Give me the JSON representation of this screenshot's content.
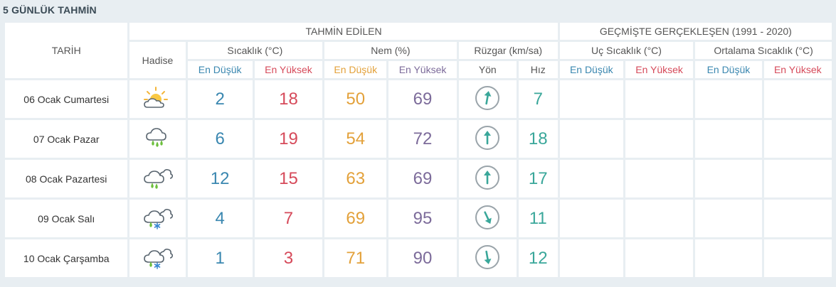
{
  "page_title": "5 GÜNLÜK TAHMİN",
  "header": {
    "tarih": "TARİH",
    "forecast_group": "TAHMİN EDİLEN",
    "history_group": "GEÇMİŞTE GERÇEKLEŞEN (1991 - 2020)",
    "hadise": "Hadise",
    "sicaklik": "Sıcaklık (°C)",
    "nem": "Nem (%)",
    "ruzgar": "Rüzgar (km/sa)",
    "uc_sicaklik": "Uç Sıcaklık (°C)",
    "ortalama_sicaklik": "Ortalama Sıcaklık (°C)",
    "en_dusuk": "En Düşük",
    "en_yuksek": "En Yüksek",
    "yon": "Yön",
    "hiz": "Hız"
  },
  "rows": [
    {
      "date": "06 Ocak Cumartesi",
      "icon": "partly-cloudy-icon",
      "temp_low": "2",
      "temp_high": "18",
      "hum_low": "50",
      "hum_high": "69",
      "wind_dir_deg": 10,
      "wind_speed": "7"
    },
    {
      "date": "07 Ocak Pazar",
      "icon": "rain-icon",
      "temp_low": "6",
      "temp_high": "19",
      "hum_low": "54",
      "hum_high": "72",
      "wind_dir_deg": 0,
      "wind_speed": "18"
    },
    {
      "date": "08 Ocak Pazartesi",
      "icon": "cloudy-rain-icon",
      "temp_low": "12",
      "temp_high": "15",
      "hum_low": "63",
      "hum_high": "69",
      "wind_dir_deg": 0,
      "wind_speed": "17"
    },
    {
      "date": "09 Ocak Salı",
      "icon": "sleet-icon",
      "temp_low": "4",
      "temp_high": "7",
      "hum_low": "69",
      "hum_high": "95",
      "wind_dir_deg": 155,
      "wind_speed": "11"
    },
    {
      "date": "10 Ocak Çarşamba",
      "icon": "sleet-icon",
      "temp_low": "1",
      "temp_high": "3",
      "hum_low": "71",
      "hum_high": "90",
      "wind_dir_deg": 170,
      "wind_speed": "12"
    }
  ],
  "colors": {
    "low": "#3a87b0",
    "high": "#d64a5a",
    "hum_low": "#e3a13a",
    "hum_high": "#7c6b9a",
    "speed": "#3aa79a"
  }
}
